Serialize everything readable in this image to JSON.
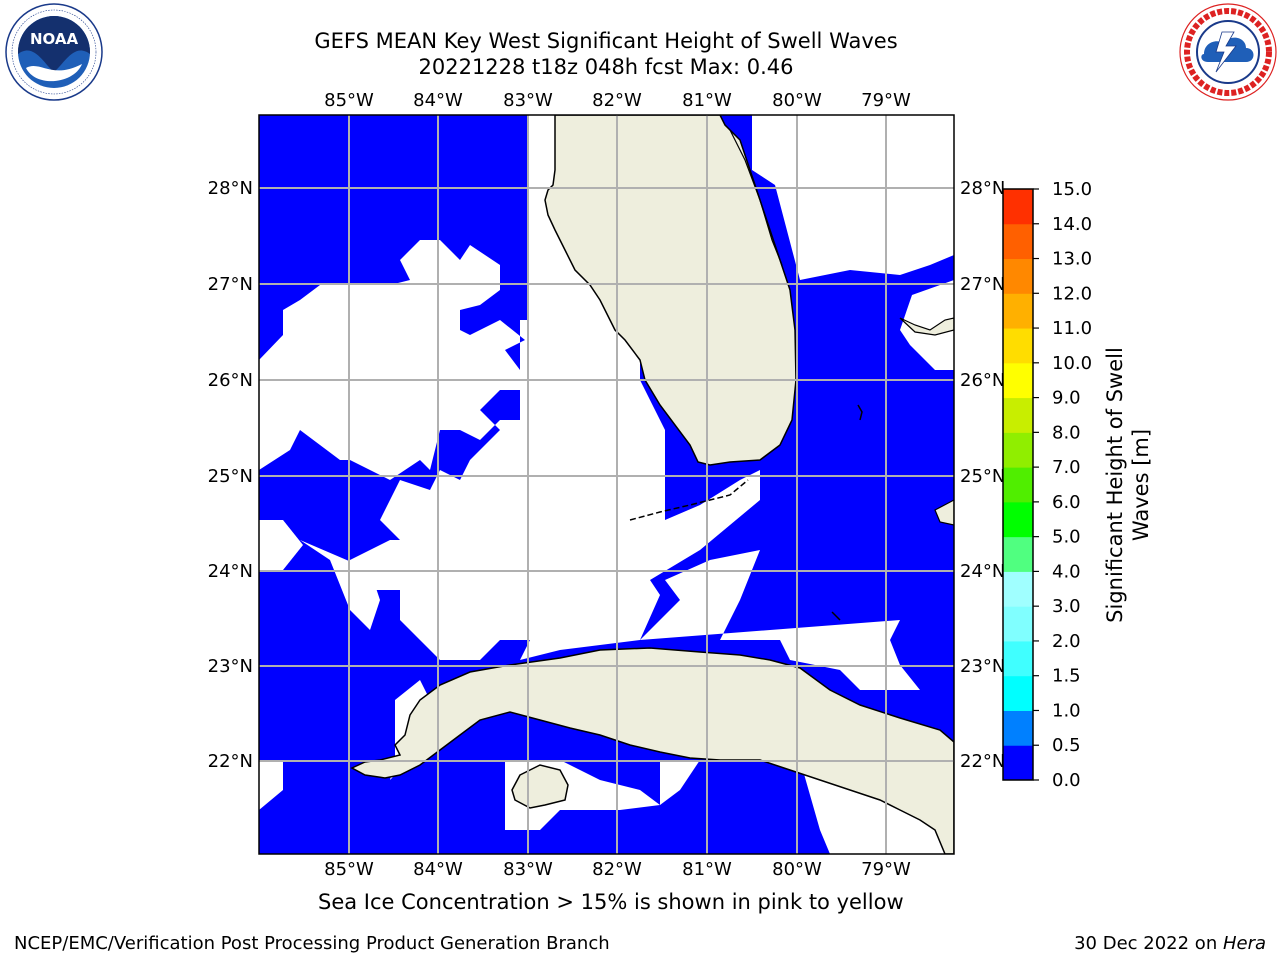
{
  "header": {
    "title_line1": "GEFS MEAN Key West Significant Height of Swell Waves",
    "title_line2": "20221228 t18z 048h fcst   Max: 0.46"
  },
  "logos": {
    "left": {
      "name": "noaa-logo",
      "text": "NOAA",
      "ring_text": "NATIONAL OCEANIC AND ATMOSPHERIC ADMINISTRATION · U.S. DEPARTMENT OF COMMERCE"
    },
    "right": {
      "name": "nws-logo",
      "ring_text": "NATIONAL WEATHER SERVICE"
    }
  },
  "map": {
    "lon_ticks": [
      "85°W",
      "84°W",
      "83°W",
      "82°W",
      "81°W",
      "80°W",
      "79°W"
    ],
    "lat_ticks": [
      "28°N",
      "27°N",
      "26°N",
      "25°N",
      "24°N",
      "23°N",
      "22°N"
    ],
    "colors": {
      "sea_swell": "#0000ff",
      "land": "#eeeedd",
      "no_data": "#ffffff",
      "grid": "#b0b0b0"
    }
  },
  "colorbar": {
    "label": "Significant Height of Swell Waves [m]",
    "label_line1": "Significant Height of Swell",
    "label_line2": "Waves [m]",
    "ticks": [
      "0.0",
      "0.5",
      "1.0",
      "1.5",
      "2.0",
      "3.0",
      "4.0",
      "5.0",
      "6.0",
      "7.0",
      "8.0",
      "9.0",
      "10.0",
      "11.0",
      "12.0",
      "13.0",
      "14.0",
      "15.0"
    ],
    "colors": [
      "#0000ff",
      "#0080ff",
      "#00ffff",
      "#40ffff",
      "#80ffff",
      "#a0ffff",
      "#50ff80",
      "#00ff00",
      "#50ee00",
      "#90ee00",
      "#c8ee00",
      "#ffff00",
      "#ffdd00",
      "#ffb000",
      "#ff8800",
      "#ff6000",
      "#ff3000",
      "#ff0000"
    ]
  },
  "caption": "Sea Ice Concentration > 15% is shown in pink to yellow",
  "footer": {
    "left": "NCEP/EMC/Verification Post Processing Product Generation Branch",
    "right_date": "30 Dec 2022 on ",
    "right_host": "Hera"
  }
}
